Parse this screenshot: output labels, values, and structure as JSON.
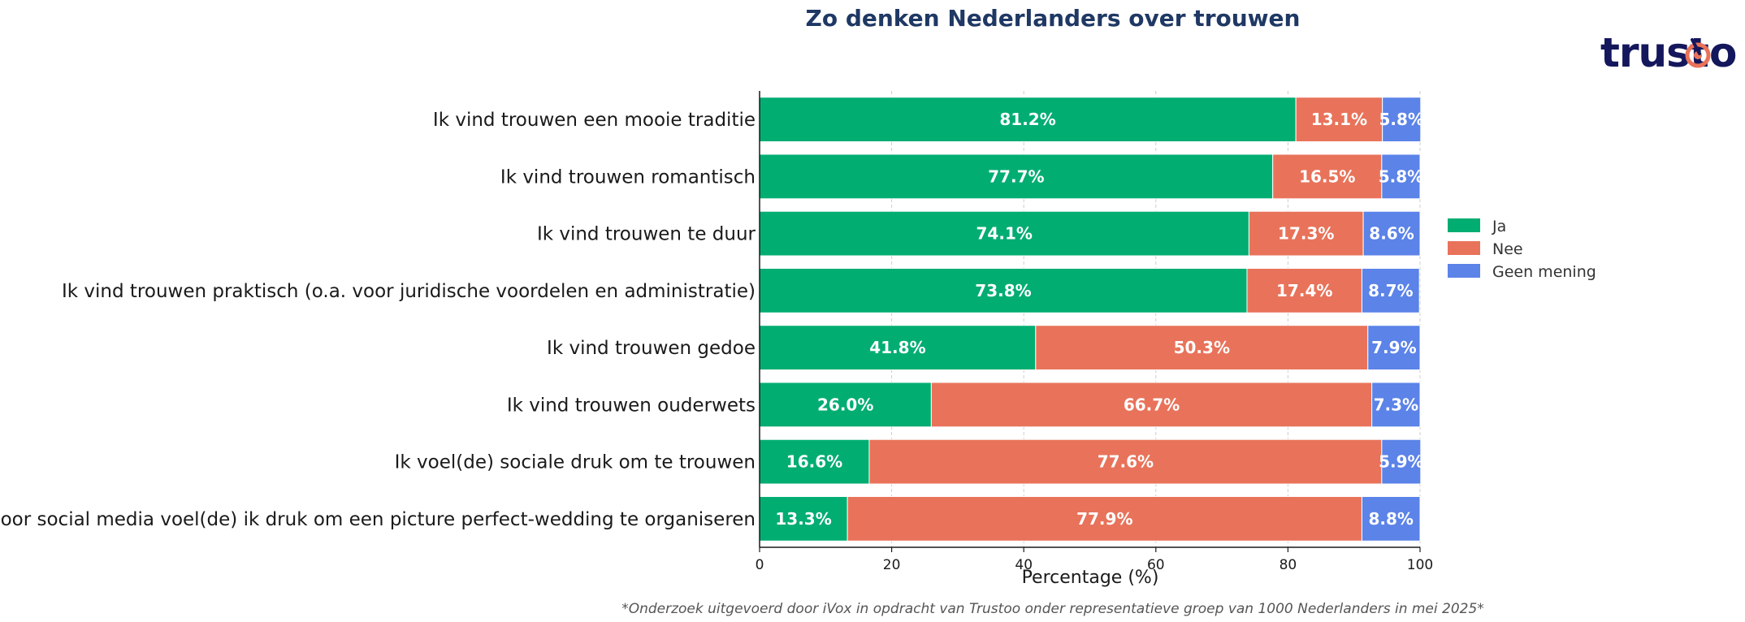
{
  "logo": {
    "text_before": "trust",
    "text_after": "o"
  },
  "chart_data": {
    "type": "bar",
    "orientation": "horizontal",
    "stacked": true,
    "title": "Zo denken Nederlanders over trouwen",
    "xlabel": "Percentage (%)",
    "ylabel": "",
    "xlim": [
      0,
      100
    ],
    "xticks": [
      "0",
      "20",
      "40",
      "60",
      "80",
      "100"
    ],
    "grid": true,
    "legend_position": "right",
    "categories": [
      "Ik vind trouwen een mooie traditie",
      "Ik vind trouwen romantisch",
      "Ik vind trouwen te duur",
      "Ik vind trouwen praktisch (o.a. voor juridische voordelen en administratie)",
      "Ik vind trouwen gedoe",
      "Ik vind trouwen ouderwets",
      "Ik voel(de) sociale druk om te trouwen",
      "Door social media voel(de) ik druk om een picture perfect-wedding te organiseren"
    ],
    "series": [
      {
        "name": "Ja",
        "color": "#02ad72",
        "values": [
          81.2,
          77.7,
          74.1,
          73.8,
          41.8,
          26.0,
          16.6,
          13.3
        ],
        "labels": [
          "81.2%",
          "77.7%",
          "74.1%",
          "73.8%",
          "41.8%",
          "26.0%",
          "16.6%",
          "13.3%"
        ]
      },
      {
        "name": "Nee",
        "color": "#e8735a",
        "values": [
          13.1,
          16.5,
          17.3,
          17.4,
          50.3,
          66.7,
          77.6,
          77.9
        ],
        "labels": [
          "13.1%",
          "16.5%",
          "17.3%",
          "17.4%",
          "50.3%",
          "66.7%",
          "77.6%",
          "77.9%"
        ]
      },
      {
        "name": "Geen mening",
        "color": "#5b83e8",
        "values": [
          5.8,
          5.8,
          8.6,
          8.7,
          7.9,
          7.3,
          5.9,
          8.8
        ],
        "labels": [
          "5.8%",
          "5.8%",
          "8.6%",
          "8.7%",
          "7.9%",
          "7.3%",
          "5.9%",
          "8.8%"
        ]
      }
    ],
    "footnote": "*Onderzoek uitgevoerd door iVox in opdracht van Trustoo onder representatieve groep van 1000 Nederlanders in mei 2025*"
  }
}
